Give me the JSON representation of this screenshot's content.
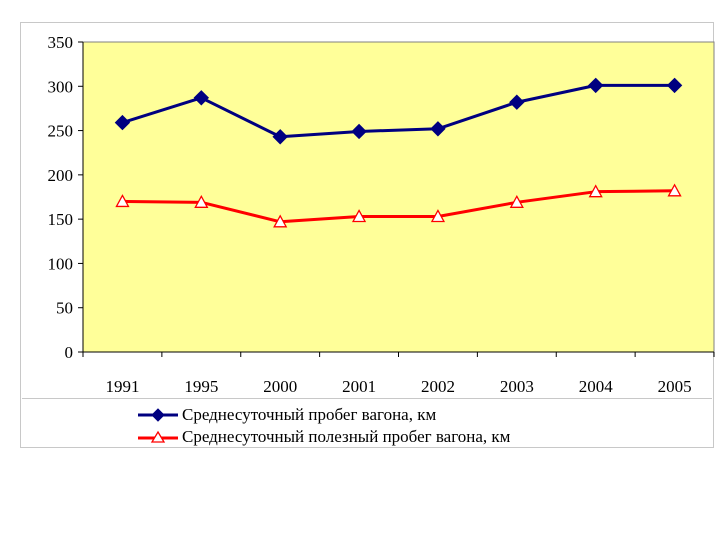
{
  "chart_data": {
    "type": "line",
    "categories": [
      "1991",
      "1995",
      "2000",
      "2001",
      "2002",
      "2003",
      "2004",
      "2005"
    ],
    "ylim": [
      0,
      350
    ],
    "yticks": [
      "0",
      "50",
      "100",
      "150",
      "200",
      "250",
      "300",
      "350"
    ],
    "grid": false,
    "plot_background": "#FFFF99",
    "legend_position": "bottom",
    "series": [
      {
        "name": "Среднесуточный пробег вагона, км",
        "values": [
          259,
          287,
          243,
          249,
          252,
          282,
          301,
          301
        ],
        "color": "#000080",
        "marker": "diamond"
      },
      {
        "name": "Среднесуточный полезный пробег вагона, км",
        "values": [
          170,
          169,
          147,
          153,
          153,
          169,
          181,
          182
        ],
        "color": "#FF0000",
        "marker": "triangle-open"
      }
    ]
  }
}
